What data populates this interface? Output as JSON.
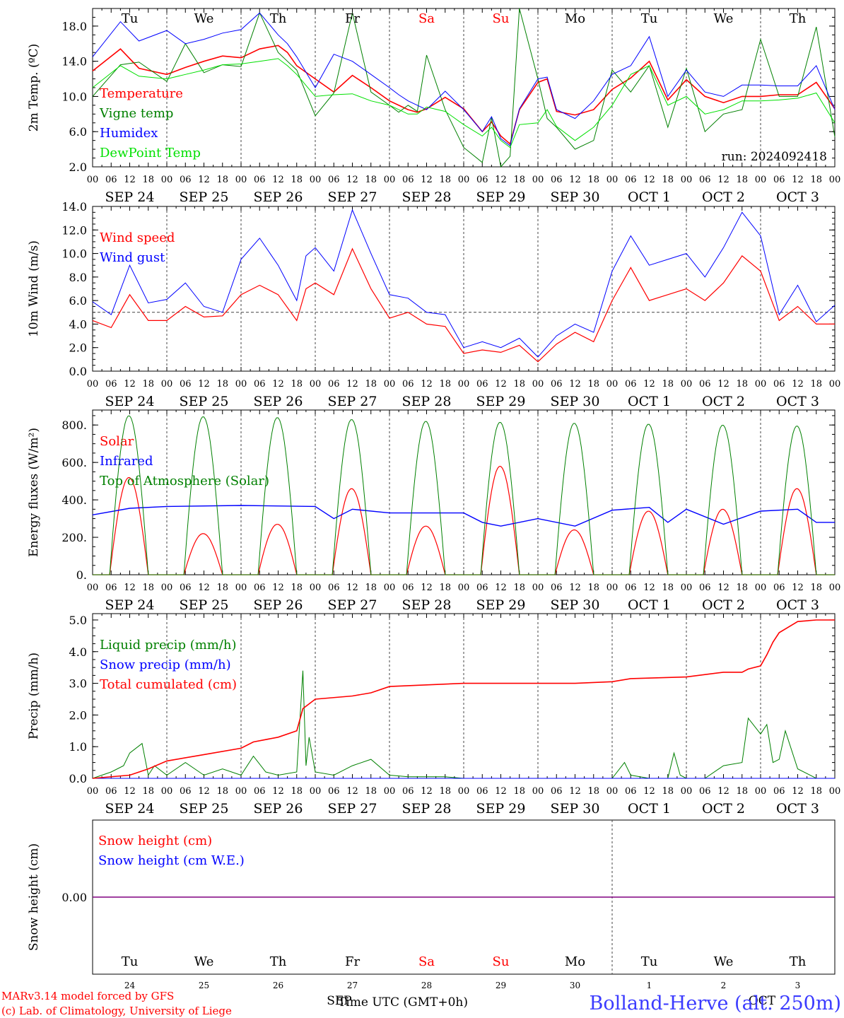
{
  "colors": {
    "red": "#ff0000",
    "green": "#008000",
    "blue": "#0000ff",
    "lightgreen": "#00e000",
    "purple": "#800080",
    "black": "#000000",
    "grid": "#444444"
  },
  "axis": {
    "hour_labels": [
      "00",
      "06",
      "12",
      "18"
    ],
    "date_labels": [
      "SEP 24",
      "SEP 25",
      "SEP 26",
      "SEP 27",
      "SEP 28",
      "SEP 29",
      "SEP 30",
      "OCT  1",
      "OCT  2",
      "OCT  3"
    ],
    "weekdays": [
      {
        "label": "Tu",
        "weekend": false
      },
      {
        "label": "We",
        "weekend": false
      },
      {
        "label": "Th",
        "weekend": false
      },
      {
        "label": "Fr",
        "weekend": false
      },
      {
        "label": "Sa",
        "weekend": true
      },
      {
        "label": "Su",
        "weekend": true
      },
      {
        "label": "Mo",
        "weekend": false
      },
      {
        "label": "Tu",
        "weekend": false
      },
      {
        "label": "We",
        "weekend": false
      },
      {
        "label": "Th",
        "weekend": false
      }
    ],
    "day_numbers": [
      "24",
      "25",
      "26",
      "27",
      "28",
      "29",
      "30",
      "1",
      "2",
      "3"
    ],
    "month_sep": "SEP",
    "month_oct": "OCT",
    "time_label": "Time UTC (GMT+0h)"
  },
  "footer": {
    "model_line": "MARv3.14 model forced by GFS",
    "credit_line": "(c) Lab. of Climatology, University of Liege",
    "location": "Bolland-Herve (alt. 250m)"
  },
  "chart_data": [
    {
      "type": "line",
      "ylabel": "2m Temp. (ºC)",
      "ylim": [
        2,
        20
      ],
      "yticks": [
        {
          "v": 2,
          "t": "2.0"
        },
        {
          "v": 6,
          "t": "6.0"
        },
        {
          "v": 10,
          "t": "10.0"
        },
        {
          "v": 14,
          "t": "14.0"
        },
        {
          "v": 18,
          "t": "18.0"
        }
      ],
      "annotation": "run: 2024092418",
      "x_hours": [
        0,
        9,
        15,
        24,
        30,
        36,
        42,
        48,
        54,
        60,
        63,
        66,
        72,
        78,
        84,
        90,
        96,
        99,
        102,
        105,
        108,
        114,
        120,
        126,
        129,
        132,
        135,
        138,
        144,
        147,
        150,
        156,
        162,
        168,
        174,
        180,
        186,
        192,
        198,
        204,
        210,
        216,
        222,
        228,
        234,
        240
      ],
      "series": [
        {
          "name": "Temperature",
          "color": "red",
          "width": 1.6,
          "values": [
            12.9,
            15.4,
            13.2,
            12.5,
            13.3,
            14.0,
            14.6,
            14.4,
            15.4,
            15.8,
            15.0,
            13.5,
            12.0,
            10.5,
            12.4,
            11.0,
            9.5,
            9.0,
            8.5,
            8.2,
            8.6,
            9.9,
            8.6,
            6.0,
            7.1,
            5.5,
            4.6,
            8.5,
            11.6,
            12.0,
            8.3,
            7.9,
            8.5,
            10.8,
            12.1,
            14.0,
            9.6,
            11.9,
            10.0,
            9.3,
            10.0,
            10.0,
            10.2,
            10.2,
            11.6,
            8.6
          ]
        },
        {
          "name": "Vigne temp",
          "color": "green",
          "width": 1,
          "values": [
            10.0,
            13.6,
            13.9,
            11.7,
            16.0,
            12.7,
            13.6,
            13.4,
            19.5,
            15.0,
            14.0,
            13.0,
            7.8,
            10.4,
            19.5,
            10.5,
            9.0,
            8.2,
            9.0,
            8.3,
            14.7,
            8.5,
            4.2,
            2.5,
            7.6,
            1.5,
            3.2,
            20.0,
            12.0,
            7.5,
            6.5,
            4.0,
            5.0,
            13.0,
            10.5,
            13.5,
            6.5,
            13.2,
            6.0,
            8.0,
            8.5,
            16.5,
            10.0,
            10.0,
            17.9,
            5.4
          ]
        },
        {
          "name": "Humidex",
          "color": "blue",
          "width": 1,
          "values": [
            14.5,
            18.5,
            16.3,
            17.5,
            16.0,
            16.5,
            17.2,
            17.6,
            19.5,
            17.0,
            16.0,
            14.5,
            11.0,
            14.8,
            14.0,
            12.5,
            11.0,
            10.2,
            9.5,
            9.0,
            8.5,
            10.6,
            8.5,
            6.0,
            7.7,
            5.2,
            4.4,
            8.6,
            12.0,
            12.2,
            8.5,
            7.5,
            9.5,
            12.5,
            13.5,
            16.8,
            10.0,
            13.0,
            10.5,
            10.0,
            11.3,
            11.3,
            11.2,
            11.2,
            13.5,
            8.5
          ]
        },
        {
          "name": "DewPoint Temp",
          "color": "lightgreen",
          "width": 1,
          "values": [
            11.0,
            13.5,
            12.3,
            12.0,
            12.5,
            13.0,
            13.6,
            13.7,
            14.0,
            14.3,
            13.5,
            12.5,
            10.0,
            10.2,
            10.3,
            9.5,
            9.0,
            8.5,
            8.0,
            8.0,
            8.8,
            8.3,
            6.8,
            5.5,
            6.5,
            5.0,
            4.2,
            6.8,
            7.0,
            8.5,
            6.6,
            5.0,
            6.5,
            9.0,
            12.5,
            13.5,
            9.0,
            10.0,
            8.0,
            8.5,
            9.5,
            9.5,
            9.6,
            9.8,
            10.4,
            7.0
          ]
        }
      ]
    },
    {
      "type": "line",
      "ylabel": "10m Wind (m/s)",
      "ylim": [
        0,
        14
      ],
      "yticks": [
        {
          "v": 0,
          "t": "0.0"
        },
        {
          "v": 2,
          "t": "2.0"
        },
        {
          "v": 4,
          "t": "4.0"
        },
        {
          "v": 6,
          "t": "6.0"
        },
        {
          "v": 8,
          "t": "8.0"
        },
        {
          "v": 10,
          "t": "10.0"
        },
        {
          "v": 12,
          "t": "12.0"
        },
        {
          "v": 14,
          "t": "14.0"
        }
      ],
      "reference_line": 5,
      "x_hours": [
        0,
        6,
        12,
        18,
        24,
        30,
        36,
        42,
        48,
        54,
        60,
        66,
        69,
        72,
        78,
        84,
        90,
        96,
        102,
        108,
        114,
        120,
        126,
        132,
        138,
        144,
        150,
        156,
        162,
        168,
        174,
        180,
        186,
        192,
        198,
        204,
        210,
        216,
        222,
        228,
        234,
        240
      ],
      "series": [
        {
          "name": "Wind speed",
          "color": "red",
          "width": 1.2,
          "values": [
            4.3,
            3.7,
            6.5,
            4.3,
            4.3,
            5.5,
            4.6,
            4.7,
            6.5,
            7.3,
            6.5,
            4.3,
            7.0,
            7.5,
            6.5,
            10.4,
            7.0,
            4.5,
            5.0,
            4.0,
            3.8,
            1.5,
            1.8,
            1.6,
            2.2,
            0.8,
            2.3,
            3.3,
            2.5,
            6.0,
            8.8,
            6.0,
            6.5,
            7.0,
            6.0,
            7.5,
            9.8,
            8.5,
            4.3,
            5.5,
            4.0,
            4.0
          ]
        },
        {
          "name": "Wind gust",
          "color": "blue",
          "width": 1,
          "values": [
            5.9,
            4.8,
            9.0,
            5.8,
            6.1,
            7.5,
            5.5,
            5.0,
            9.5,
            11.3,
            9.0,
            6.0,
            9.8,
            10.5,
            8.5,
            13.7,
            10.0,
            6.5,
            6.2,
            5.0,
            4.8,
            2.0,
            2.5,
            2.0,
            2.8,
            1.2,
            3.0,
            4.0,
            3.3,
            8.5,
            11.5,
            9.0,
            9.5,
            10.0,
            8.0,
            10.5,
            13.5,
            11.5,
            4.8,
            7.3,
            4.2,
            5.6
          ]
        }
      ]
    },
    {
      "type": "line",
      "ylabel": "Energy fluxes (W/m²)",
      "ylim": [
        0,
        880
      ],
      "yticks": [
        {
          "v": 0,
          "t": "0."
        },
        {
          "v": 200,
          "t": "200."
        },
        {
          "v": 400,
          "t": "400."
        },
        {
          "v": 600,
          "t": "600."
        },
        {
          "v": 800,
          "t": "800."
        }
      ],
      "sun_start_hour": 5.5,
      "sun_end_hour": 18.0,
      "series": [
        {
          "name": "Solar",
          "color": "red",
          "width": 1.2,
          "kind": "daily",
          "daily_peaks": [
            520,
            220,
            270,
            460,
            260,
            580,
            240,
            340,
            350,
            460
          ]
        },
        {
          "name": "Infrared",
          "color": "blue",
          "width": 1.4,
          "x_hours": [
            0,
            12,
            24,
            48,
            72,
            78,
            84,
            96,
            120,
            126,
            132,
            144,
            156,
            168,
            180,
            186,
            192,
            204,
            216,
            228,
            234,
            240
          ],
          "values": [
            320,
            355,
            365,
            370,
            365,
            300,
            350,
            330,
            330,
            280,
            260,
            300,
            260,
            345,
            360,
            280,
            350,
            270,
            340,
            350,
            280,
            280
          ]
        },
        {
          "name": "Top of Atmosphere (Solar)",
          "color": "green",
          "width": 1,
          "kind": "daily",
          "daily_peaks": [
            850,
            845,
            840,
            830,
            820,
            815,
            810,
            805,
            800,
            795
          ]
        }
      ]
    },
    {
      "type": "line",
      "ylabel": "Precip (mm/h)",
      "ylim": [
        0,
        5.2
      ],
      "yticks": [
        {
          "v": 0,
          "t": "0.0"
        },
        {
          "v": 1,
          "t": "1.0"
        },
        {
          "v": 2,
          "t": "2.0"
        },
        {
          "v": 3,
          "t": "3.0"
        },
        {
          "v": 4,
          "t": "4.0"
        },
        {
          "v": 5,
          "t": "5.0"
        }
      ],
      "series": [
        {
          "name": "Liquid precip (mm/h)",
          "color": "green",
          "width": 1,
          "x_hours": [
            0,
            6,
            10,
            12,
            16,
            18,
            20,
            24,
            30,
            36,
            42,
            48,
            52,
            56,
            60,
            66,
            68,
            69,
            70,
            72,
            78,
            84,
            90,
            96,
            102,
            108,
            114,
            120,
            126,
            132,
            138,
            144,
            156,
            168,
            172,
            174,
            180,
            186,
            188,
            190,
            192,
            198,
            204,
            210,
            212,
            216,
            218,
            220,
            222,
            224,
            228,
            234,
            240
          ],
          "values": [
            0,
            0.2,
            0.4,
            0.8,
            1.1,
            0.1,
            0.4,
            0.1,
            0.5,
            0.1,
            0.3,
            0.1,
            0.7,
            0.2,
            0.1,
            0.2,
            3.4,
            0.4,
            1.3,
            0.2,
            0.1,
            0.4,
            0.6,
            0.1,
            0.05,
            0.05,
            0.05,
            0,
            0,
            0,
            0,
            0,
            0,
            0,
            0.5,
            0.1,
            0,
            0,
            0.8,
            0.1,
            0,
            0,
            0.4,
            0.5,
            1.9,
            1.4,
            1.7,
            0.5,
            0.6,
            1.5,
            0.3,
            0,
            0
          ]
        },
        {
          "name": "Snow precip (mm/h)",
          "color": "blue",
          "width": 1,
          "x_hours": [
            0,
            240
          ],
          "values": [
            0,
            0
          ]
        },
        {
          "name": "Total cumulated (cm)",
          "color": "red",
          "width": 1.6,
          "x_hours": [
            0,
            12,
            18,
            24,
            36,
            48,
            52,
            60,
            66,
            68,
            72,
            84,
            90,
            96,
            108,
            120,
            132,
            156,
            168,
            174,
            192,
            204,
            210,
            212,
            216,
            218,
            220,
            222,
            228,
            234,
            240
          ],
          "values": [
            0,
            0.1,
            0.3,
            0.55,
            0.75,
            0.95,
            1.15,
            1.3,
            1.5,
            2.2,
            2.5,
            2.6,
            2.7,
            2.9,
            2.95,
            3.0,
            3.0,
            3.0,
            3.05,
            3.15,
            3.2,
            3.35,
            3.35,
            3.45,
            3.55,
            3.9,
            4.3,
            4.6,
            4.95,
            5.0,
            5.0
          ]
        }
      ]
    },
    {
      "type": "line",
      "ylabel": "Snow height (cm)",
      "ylim": [
        -1,
        1
      ],
      "yticks": [
        {
          "v": 0,
          "t": "0.00"
        }
      ],
      "series": [
        {
          "name": "Snow height (cm)",
          "color": "red",
          "width": 1,
          "x_hours": [
            0,
            240
          ],
          "values": [
            0,
            0
          ]
        },
        {
          "name": "Snow height (cm W.E.)",
          "color": "blue",
          "width": 1,
          "x_hours": [
            0,
            240
          ],
          "values": [
            0,
            0
          ]
        }
      ]
    }
  ]
}
